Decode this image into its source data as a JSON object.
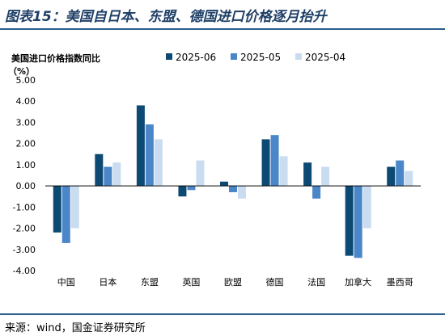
{
  "figure_title": "图表15：美国自日本、东盟、德国进口价格逐月抬升",
  "source": "来源：wind，国金证券研究所",
  "colors": {
    "title": "#1f3f66",
    "rule": "#2b5d8f",
    "series": [
      "#0d4a73",
      "#4a86c8",
      "#c9dcf0"
    ]
  },
  "chart_data": {
    "type": "bar",
    "ylabel": "美国进口价格指数同比",
    "yunit": "（%）",
    "categories": [
      "中国",
      "日本",
      "东盟",
      "英国",
      "欧盟",
      "德国",
      "法国",
      "加拿大",
      "墨西哥"
    ],
    "series": [
      {
        "name": "2025-06",
        "values": [
          -2.2,
          1.5,
          3.8,
          -0.5,
          0.2,
          2.2,
          1.1,
          -3.3,
          0.9
        ]
      },
      {
        "name": "2025-05",
        "values": [
          -2.7,
          0.9,
          2.9,
          -0.2,
          -0.3,
          2.4,
          -0.6,
          -3.4,
          1.2
        ]
      },
      {
        "name": "2025-04",
        "values": [
          -2.0,
          1.1,
          2.2,
          1.2,
          -0.6,
          1.4,
          0.9,
          -2.0,
          0.7
        ]
      }
    ],
    "ylim": [
      -4,
      5
    ],
    "yticks": [
      "5.00",
      "4.00",
      "3.00",
      "2.00",
      "1.00",
      "0.00",
      "-1.00",
      "-2.00",
      "-3.00",
      "-4.00"
    ],
    "legend_position": "top-right",
    "grid": false
  }
}
